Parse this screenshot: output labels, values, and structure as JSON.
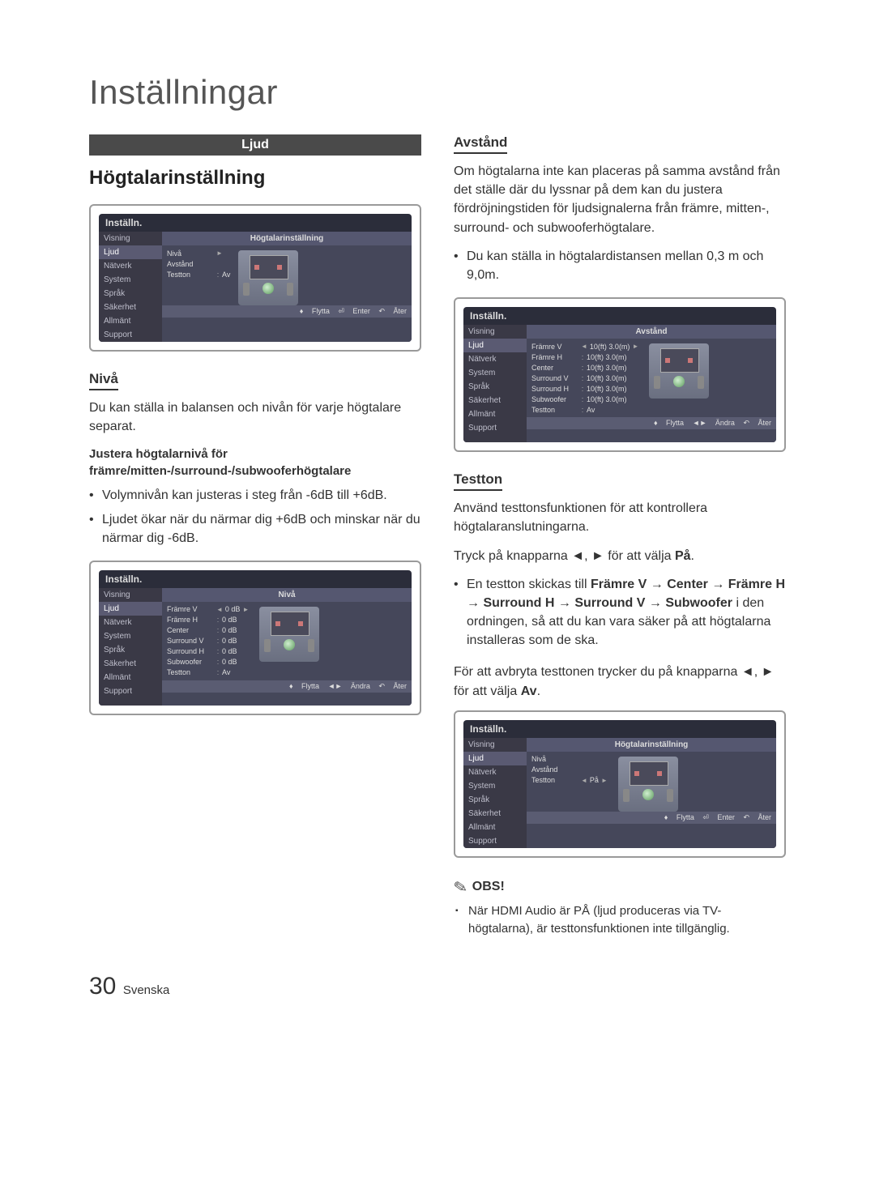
{
  "page": {
    "title": "Inställningar",
    "number": "30",
    "language_label": "Svenska"
  },
  "section_bar": "Ljud",
  "left": {
    "h2": "Högtalarinställning",
    "niva": {
      "heading": "Nivå",
      "intro": "Du kan ställa in balansen och nivån för varje högtalare separat.",
      "bold": "Justera högtalarnivå för främre/mitten-/surround-/subwooferhögtalare",
      "b1": "Volymnivån kan justeras i steg från -6dB till +6dB.",
      "b2": "Ljudet ökar när du närmar dig +6dB och minskar när du närmar dig -6dB."
    }
  },
  "right": {
    "avstand": {
      "heading": "Avstånd",
      "intro": "Om högtalarna inte kan placeras på samma avstånd från det ställe där du lyssnar på dem kan du justera fördröjningstiden för ljudsignalerna från främre, mitten-, surround- och subwooferhögtalare.",
      "b1": "Du kan ställa in högtalardistansen mellan 0,3 m och 9,0m."
    },
    "testton": {
      "heading": "Testton",
      "intro": "Använd testtonsfunktionen för att kontrollera högtalaranslutningarna.",
      "press_prefix": "Tryck på knapparna ◄, ► för att välja ",
      "press_bold": "På",
      "press_suffix": ".",
      "b1_pre": "En testton skickas till ",
      "b1_chain": "Främre V → Center → Främre H → Surround H → Surround V → Subwoofer",
      "b1_post": " i den ordningen, så att du kan vara säker på att högtalarna installeras som de ska.",
      "cancel_pre": "För att avbryta testtonen trycker du på knapparna ◄, ► för att välja ",
      "cancel_bold": "Av",
      "cancel_suffix": "."
    },
    "obs": {
      "label": "OBS!",
      "note": "När HDMI Audio är PÅ (ljud produceras via TV-högtalarna), är testtonsfunktionen inte tillgänglig."
    }
  },
  "mock": {
    "brand": "Inställn.",
    "sidebar": [
      "Visning",
      "Ljud",
      "Nätverk",
      "System",
      "Språk",
      "Säkerhet",
      "Allmänt",
      "Support"
    ],
    "hdr_hogtalar": "Högtalarinställning",
    "hdr_niva": "Nivå",
    "hdr_avstand": "Avstånd",
    "rows_simple": [
      {
        "lbl": "Nivå",
        "val": "►"
      },
      {
        "lbl": "Avstånd",
        "val": ""
      },
      {
        "lbl": "Testton",
        "sep": ":",
        "val": "Av"
      }
    ],
    "rows_niva": [
      {
        "lbl": "Främre V",
        "sep": "◄",
        "val": "0 dB",
        "tail": "►"
      },
      {
        "lbl": "Främre H",
        "sep": ":",
        "val": "0 dB"
      },
      {
        "lbl": "Center",
        "sep": ":",
        "val": "0 dB"
      },
      {
        "lbl": "Surround V",
        "sep": ":",
        "val": "0 dB"
      },
      {
        "lbl": "Surround H",
        "sep": ":",
        "val": "0 dB"
      },
      {
        "lbl": "Subwoofer",
        "sep": ":",
        "val": "0 dB"
      },
      {
        "lbl": "Testton",
        "sep": ":",
        "val": "Av"
      }
    ],
    "rows_avstand": [
      {
        "lbl": "Främre V",
        "sep": "◄",
        "val": "10(ft) 3.0(m)",
        "tail": "►"
      },
      {
        "lbl": "Främre H",
        "sep": ":",
        "val": "10(ft) 3.0(m)"
      },
      {
        "lbl": "Center",
        "sep": ":",
        "val": "10(ft) 3.0(m)"
      },
      {
        "lbl": "Surround V",
        "sep": ":",
        "val": "10(ft) 3.0(m)"
      },
      {
        "lbl": "Surround H",
        "sep": ":",
        "val": "10(ft) 3.0(m)"
      },
      {
        "lbl": "Subwoofer",
        "sep": ":",
        "val": "10(ft) 3.0(m)"
      },
      {
        "lbl": "Testton",
        "sep": ":",
        "val": "Av"
      }
    ],
    "rows_pa": [
      {
        "lbl": "Nivå",
        "val": ""
      },
      {
        "lbl": "Avstånd",
        "val": ""
      },
      {
        "lbl": "Testton",
        "sep": "◄",
        "val": "På",
        "tail": "►"
      }
    ],
    "footer_items": {
      "flytta": "Flytta",
      "enter": "Enter",
      "ater": "Åter",
      "andra": "Ändra"
    }
  }
}
